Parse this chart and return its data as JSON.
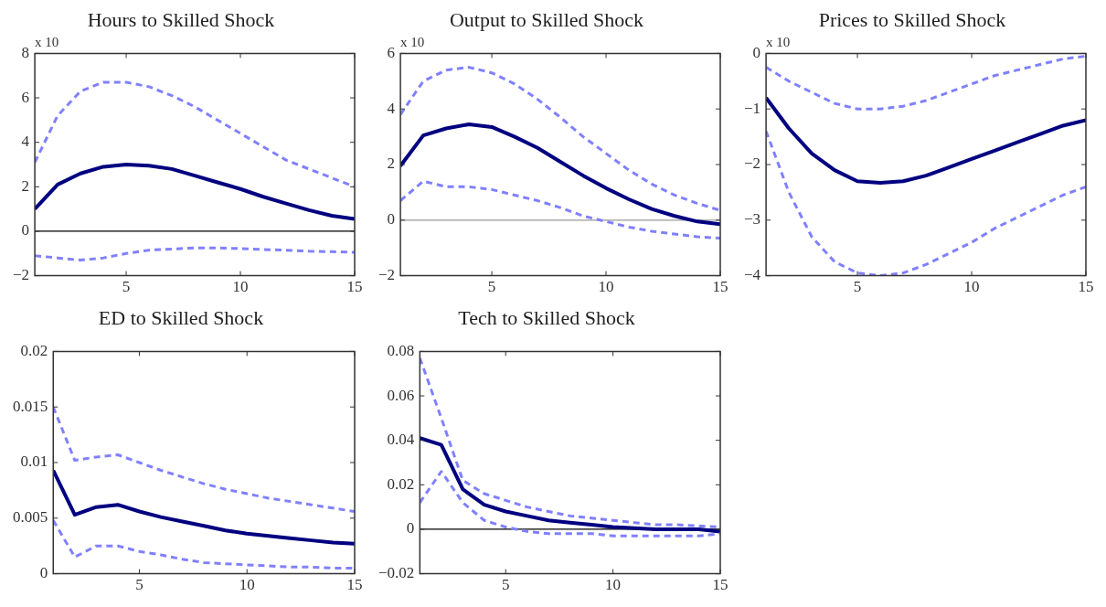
{
  "chart_data": [
    {
      "type": "line",
      "title": "Hours to Skilled Shock",
      "annotations": [
        "x 10"
      ],
      "x": [
        1,
        2,
        3,
        4,
        5,
        6,
        7,
        8,
        9,
        10,
        11,
        12,
        13,
        14,
        15
      ],
      "xlim": [
        1,
        15
      ],
      "xticks": [
        5,
        10,
        15
      ],
      "ylim": [
        -2,
        8
      ],
      "yticks": [
        -2,
        0,
        2,
        4,
        6,
        8
      ],
      "ref_lines": [
        {
          "axis": "y",
          "value": 0,
          "color": "#000000"
        }
      ],
      "series": [
        {
          "color": "#8080ff",
          "line_style": "dashed",
          "values": [
            3.1,
            5.2,
            6.3,
            6.7,
            6.7,
            6.5,
            6.1,
            5.6,
            5.0,
            4.4,
            3.8,
            3.2,
            2.8,
            2.4,
            2.0
          ]
        },
        {
          "color": "#8080ff",
          "line_style": "dashed",
          "values": [
            -1.1,
            -1.2,
            -1.3,
            -1.2,
            -1.0,
            -0.85,
            -0.8,
            -0.75,
            -0.75,
            -0.78,
            -0.82,
            -0.85,
            -0.9,
            -0.92,
            -0.95
          ]
        },
        {
          "color": "#000080",
          "line_style": "solid",
          "values": [
            1.0,
            2.1,
            2.6,
            2.9,
            3.0,
            2.95,
            2.8,
            2.5,
            2.2,
            1.9,
            1.55,
            1.25,
            0.95,
            0.7,
            0.55
          ]
        }
      ]
    },
    {
      "type": "line",
      "title": "Output to Skilled Shock",
      "annotations": [
        "x 10"
      ],
      "x": [
        1,
        2,
        3,
        4,
        5,
        6,
        7,
        8,
        9,
        10,
        11,
        12,
        13,
        14,
        15
      ],
      "xlim": [
        1,
        15
      ],
      "xticks": [
        5,
        10,
        15
      ],
      "ylim": [
        -2,
        6
      ],
      "yticks": [
        -2,
        0,
        2,
        4,
        6
      ],
      "ref_lines": [
        {
          "axis": "y",
          "value": 0,
          "color": "#999999"
        }
      ],
      "series": [
        {
          "color": "#8080ff",
          "line_style": "dashed",
          "values": [
            3.8,
            5.0,
            5.4,
            5.5,
            5.3,
            4.9,
            4.35,
            3.7,
            3.0,
            2.4,
            1.8,
            1.3,
            0.9,
            0.6,
            0.35
          ]
        },
        {
          "color": "#8080ff",
          "line_style": "dashed",
          "values": [
            0.7,
            1.4,
            1.2,
            1.2,
            1.1,
            0.9,
            0.7,
            0.45,
            0.15,
            -0.05,
            -0.25,
            -0.4,
            -0.5,
            -0.6,
            -0.65
          ]
        },
        {
          "color": "#000080",
          "line_style": "solid",
          "values": [
            1.95,
            3.05,
            3.3,
            3.45,
            3.35,
            3.0,
            2.6,
            2.1,
            1.6,
            1.15,
            0.75,
            0.4,
            0.15,
            -0.05,
            -0.15
          ]
        }
      ]
    },
    {
      "type": "line",
      "title": "Prices to Skilled Shock",
      "annotations": [
        "x 10"
      ],
      "x": [
        1,
        2,
        3,
        4,
        5,
        6,
        7,
        8,
        9,
        10,
        11,
        12,
        13,
        14,
        15
      ],
      "xlim": [
        1,
        15
      ],
      "xticks": [
        5,
        10,
        15
      ],
      "ylim": [
        -4,
        0
      ],
      "yticks": [
        -4,
        -3,
        -2,
        -1,
        0
      ],
      "series": [
        {
          "color": "#8080ff",
          "line_style": "dashed",
          "values": [
            -0.25,
            -0.5,
            -0.7,
            -0.9,
            -1.0,
            -1.0,
            -0.95,
            -0.85,
            -0.7,
            -0.55,
            -0.4,
            -0.3,
            -0.2,
            -0.1,
            -0.05
          ]
        },
        {
          "color": "#8080ff",
          "line_style": "dashed",
          "values": [
            -1.4,
            -2.5,
            -3.3,
            -3.75,
            -3.95,
            -4.0,
            -3.95,
            -3.8,
            -3.6,
            -3.4,
            -3.15,
            -2.95,
            -2.75,
            -2.55,
            -2.4
          ]
        },
        {
          "color": "#000080",
          "line_style": "solid",
          "values": [
            -0.8,
            -1.35,
            -1.8,
            -2.1,
            -2.3,
            -2.33,
            -2.3,
            -2.2,
            -2.05,
            -1.9,
            -1.75,
            -1.6,
            -1.45,
            -1.3,
            -1.2
          ]
        }
      ]
    },
    {
      "type": "line",
      "title": "ED to Skilled Shock",
      "x": [
        1,
        2,
        3,
        4,
        5,
        6,
        7,
        8,
        9,
        10,
        11,
        12,
        13,
        14,
        15
      ],
      "xlim": [
        1,
        15
      ],
      "xticks": [
        5,
        10,
        15
      ],
      "ylim": [
        0,
        0.02
      ],
      "yticks": [
        0,
        0.005,
        0.01,
        0.015,
        0.02
      ],
      "series": [
        {
          "color": "#8080ff",
          "line_style": "dashed",
          "values": [
            0.015,
            0.0102,
            0.0105,
            0.0107,
            0.01,
            0.0093,
            0.0087,
            0.0081,
            0.0076,
            0.0072,
            0.0068,
            0.0065,
            0.0062,
            0.0059,
            0.0056
          ]
        },
        {
          "color": "#8080ff",
          "line_style": "dashed",
          "values": [
            0.0048,
            0.0015,
            0.0025,
            0.0025,
            0.002,
            0.0017,
            0.0013,
            0.001,
            0.0009,
            0.0008,
            0.0007,
            0.0006,
            0.0006,
            0.0005,
            0.0005
          ]
        },
        {
          "color": "#000080",
          "line_style": "solid",
          "values": [
            0.0093,
            0.0053,
            0.006,
            0.0062,
            0.0056,
            0.0051,
            0.0047,
            0.0043,
            0.0039,
            0.0036,
            0.0034,
            0.0032,
            0.003,
            0.0028,
            0.0027
          ]
        }
      ]
    },
    {
      "type": "line",
      "title": "Tech to Skilled Shock",
      "x": [
        1,
        2,
        3,
        4,
        5,
        6,
        7,
        8,
        9,
        10,
        11,
        12,
        13,
        14,
        15
      ],
      "xlim": [
        1,
        15
      ],
      "xticks": [
        5,
        10,
        15
      ],
      "ylim": [
        -0.02,
        0.08
      ],
      "yticks": [
        -0.02,
        0,
        0.02,
        0.04,
        0.06,
        0.08
      ],
      "ref_lines": [
        {
          "axis": "y",
          "value": 0,
          "color": "#000000"
        }
      ],
      "series": [
        {
          "color": "#8080ff",
          "line_style": "dashed",
          "values": [
            0.077,
            0.05,
            0.022,
            0.016,
            0.013,
            0.01,
            0.008,
            0.006,
            0.005,
            0.004,
            0.003,
            0.002,
            0.002,
            0.0015,
            0.001
          ]
        },
        {
          "color": "#8080ff",
          "line_style": "dashed",
          "values": [
            0.012,
            0.026,
            0.012,
            0.004,
            0.001,
            -0.001,
            -0.002,
            -0.002,
            -0.002,
            -0.003,
            -0.003,
            -0.003,
            -0.003,
            -0.003,
            -0.002
          ]
        },
        {
          "color": "#000080",
          "line_style": "solid",
          "values": [
            0.041,
            0.038,
            0.018,
            0.011,
            0.008,
            0.006,
            0.004,
            0.003,
            0.002,
            0.001,
            0.0005,
            0,
            0,
            0,
            -0.001
          ]
        }
      ]
    }
  ]
}
